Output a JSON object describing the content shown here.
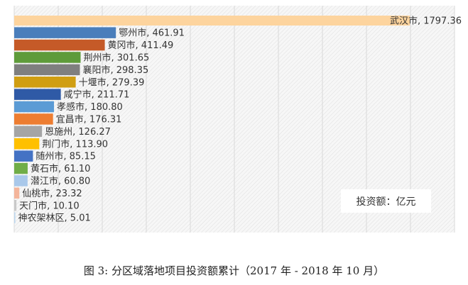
{
  "chart_data": {
    "type": "bar",
    "orientation": "horizontal",
    "categories": [
      "武汉市",
      "鄂州市",
      "黄冈市",
      "荆州市",
      "襄阳市",
      "十堰市",
      "咸宁市",
      "孝感市",
      "宜昌市",
      "恩施州",
      "荆门市",
      "随州市",
      "黄石市",
      "潜江市",
      "仙桃市",
      "天门市",
      "神农架林区"
    ],
    "values": [
      1797.36,
      461.91,
      411.49,
      301.65,
      298.35,
      279.39,
      211.71,
      180.8,
      176.31,
      126.27,
      113.9,
      85.15,
      61.1,
      60.8,
      23.32,
      10.1,
      5.01
    ],
    "data_labels": [
      "武汉市, 1797.36",
      "鄂州市, 461.91",
      "黄冈市, 411.49",
      "荆州市, 301.65",
      "襄阳市, 298.35",
      "十堰市, 279.39",
      "咸宁市, 211.71",
      "孝感市, 180.80",
      "宜昌市, 176.31",
      "恩施州, 126.27",
      "荆门市, 113.90",
      "随州市, 85.15",
      "黄石市, 61.10",
      "潜江市, 60.80",
      "仙桃市, 23.32",
      "天门市, 10.10",
      "神农架林区, 5.01"
    ],
    "colors": [
      "#fdd49e",
      "#4a7ebb",
      "#c55a28",
      "#5e9b3a",
      "#7f7f7f",
      "#d09e12",
      "#2f5aa6",
      "#5b9bd5",
      "#ed7d31",
      "#a5a5a5",
      "#ffc000",
      "#4472c4",
      "#70ad47",
      "#a9c8ea",
      "#f4b59b",
      "#c9c9c9",
      "#bdd7ee"
    ],
    "xlim": [
      0,
      2000
    ],
    "grid_step": 200,
    "grid": true,
    "axis_tick_labels": false,
    "title": "",
    "xlabel": "",
    "ylabel": "",
    "unit_note": "投资额：亿元"
  },
  "caption": "图 3:  分区域落地项目投资额累计（2017 年 - 2018 年 10 月）"
}
